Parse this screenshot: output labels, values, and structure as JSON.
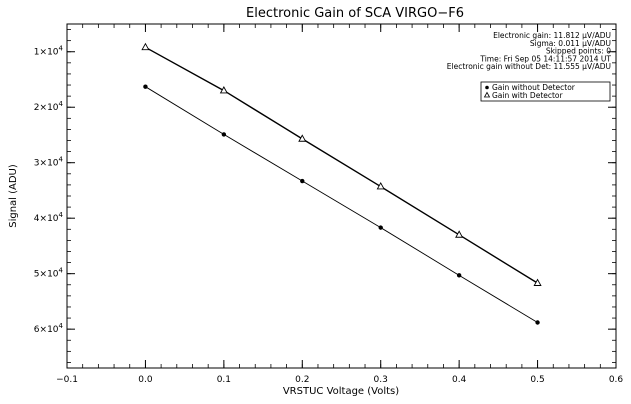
{
  "chart_data": {
    "type": "scatter",
    "title": "Electronic Gain of SCA VIRGO−F6",
    "xlabel": "VRSTUC Voltage (Volts)",
    "ylabel": "Signal (ADU)",
    "xlim": [
      -0.1,
      0.6
    ],
    "ylim": [
      67000,
      5000
    ],
    "y_reversed": true,
    "grid": false,
    "legend_position": "top-right",
    "x_ticks": [
      -0.1,
      0.0,
      0.1,
      0.2,
      0.3,
      0.4,
      0.5,
      0.6
    ],
    "x_tick_labels": [
      "−0.1",
      "0.0",
      "0.1",
      "0.2",
      "0.3",
      "0.4",
      "0.5",
      "0.6"
    ],
    "y_ticks": [
      {
        "value": 10000,
        "base": "1×10",
        "exp": "4"
      },
      {
        "value": 20000,
        "base": "2×10",
        "exp": "4"
      },
      {
        "value": 30000,
        "base": "3×10",
        "exp": "4"
      },
      {
        "value": 40000,
        "base": "4×10",
        "exp": "4"
      },
      {
        "value": 50000,
        "base": "5×10",
        "exp": "4"
      },
      {
        "value": 60000,
        "base": "6×10",
        "exp": "4"
      }
    ],
    "series": [
      {
        "name": "Gain without Detector",
        "marker": "filled-circle",
        "x": [
          0.0,
          0.1,
          0.2,
          0.3,
          0.4,
          0.5
        ],
        "y": [
          16300,
          24900,
          33300,
          41700,
          50300,
          58800
        ]
      },
      {
        "name": "Gain with Detector",
        "marker": "open-triangle",
        "x": [
          0.0,
          0.1,
          0.2,
          0.3,
          0.4,
          0.5
        ],
        "y": [
          9200,
          17000,
          25700,
          34300,
          43000,
          51700
        ]
      }
    ],
    "annotations": [
      "Electronic gain: 11.812 µV/ADU",
      "Sigma: 0.011 µV/ADU",
      "Skipped points: 0",
      "Time: Fri Sep 05 14:11:57 2014 UT",
      "Electronic gain without Det: 11.555 µV/ADU"
    ]
  }
}
